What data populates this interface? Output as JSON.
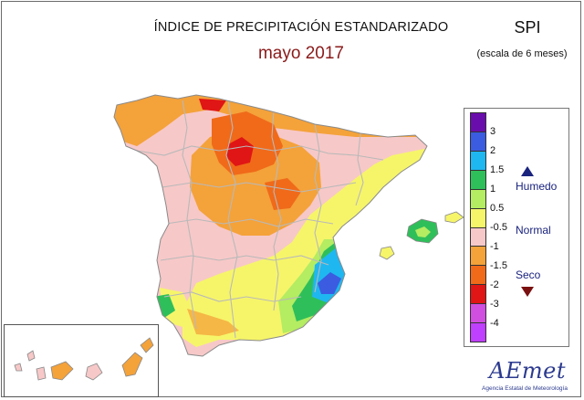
{
  "header": {
    "title": "ÍNDICE DE PRECIPITACIÓN ESTANDARIZADO",
    "period": "mayo 2017",
    "index_name": "SPI",
    "scale": "(escala de 6 meses)"
  },
  "legend": {
    "classes": [
      {
        "label": "3",
        "color": "#6a0dad"
      },
      {
        "label": "2",
        "color": "#3b5ce0"
      },
      {
        "label": "1.5",
        "color": "#1fb7f0"
      },
      {
        "label": "1",
        "color": "#2fbf5a"
      },
      {
        "label": "0.5",
        "color": "#b4ec62"
      },
      {
        "label": "-0.5",
        "color": "#f6f56a"
      },
      {
        "label": "-1",
        "color": "#f7c8c8"
      },
      {
        "label": "-1.5",
        "color": "#f4a23a"
      },
      {
        "label": "-2",
        "color": "#f06a1a"
      },
      {
        "label": "-3",
        "color": "#e01515"
      },
      {
        "label": "-4",
        "color": "#d04fe0"
      },
      {
        "label": "",
        "color": "#c040ff"
      }
    ],
    "categories": {
      "wet": "Humedo",
      "normal": "Normal",
      "dry": "Seco"
    }
  },
  "map": {
    "icons": [
      "spain-map",
      "canary-islands-inset",
      "balearic-islands"
    ]
  },
  "logo": {
    "word": "AEmet",
    "agency": "Agencia Estatal de Meteorología"
  }
}
